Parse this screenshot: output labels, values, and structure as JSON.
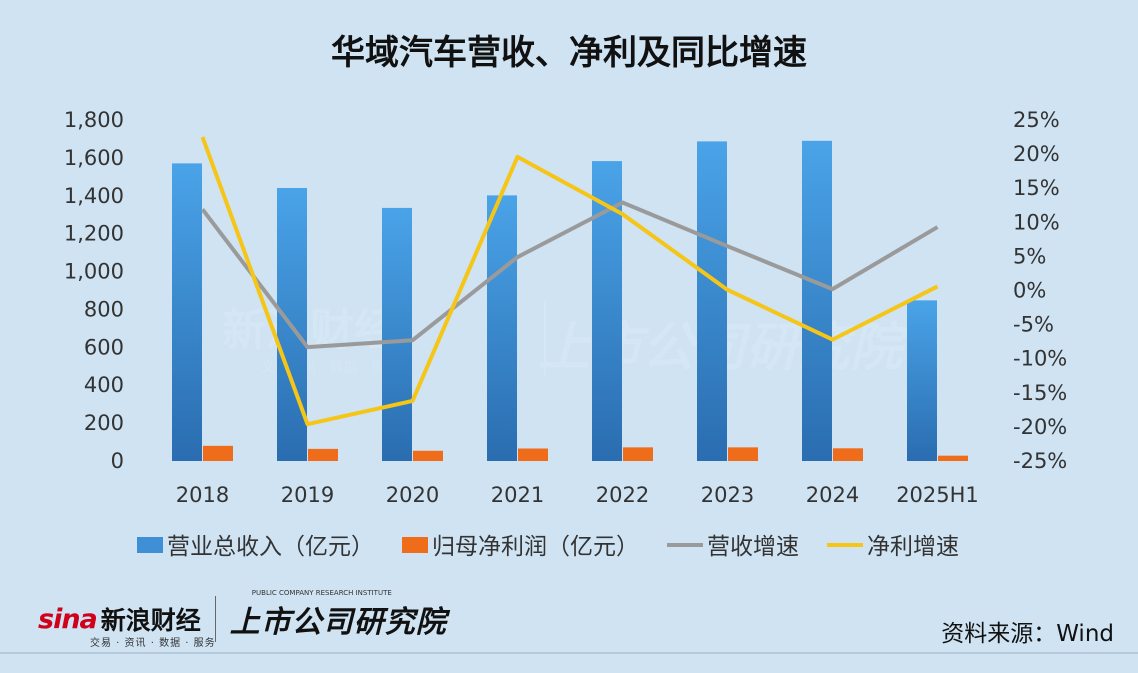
{
  "chart_data": {
    "type": "bar+line",
    "title": "华域汽车营收、净利及同比增速",
    "categories": [
      "2018",
      "2019",
      "2020",
      "2021",
      "2022",
      "2023",
      "2024",
      "2025H1"
    ],
    "left_axis": {
      "ylim": [
        0,
        1800
      ],
      "ticks": [
        "0",
        "200",
        "400",
        "600",
        "800",
        "1,000",
        "1,200",
        "1,400",
        "1,600",
        "1,800"
      ]
    },
    "right_axis": {
      "ylim": [
        -25,
        25
      ],
      "ticks": [
        "-25%",
        "-20%",
        "-15%",
        "-10%",
        "-5%",
        "0%",
        "5%",
        "10%",
        "15%",
        "20%",
        "25%"
      ]
    },
    "series": [
      {
        "name": "营业总收入（亿元）",
        "type": "bar",
        "axis": "left",
        "color": "#3f8fd6",
        "values": [
          1571,
          1441,
          1336,
          1402,
          1583,
          1687,
          1690,
          848
        ]
      },
      {
        "name": "归母净利润（亿元）",
        "type": "bar",
        "axis": "left",
        "color": "#ef6c1a",
        "values": [
          80,
          64,
          54,
          66,
          72,
          72,
          67,
          28
        ]
      },
      {
        "name": "营收增速",
        "type": "line",
        "axis": "right",
        "color": "#9a9a9a",
        "values": [
          11.9,
          -8.3,
          -7.3,
          4.9,
          12.9,
          6.5,
          0.2,
          9.3
        ]
      },
      {
        "name": "净利增速",
        "type": "line",
        "axis": "right",
        "color": "#f5c518",
        "values": [
          22.5,
          -19.6,
          -16.2,
          19.6,
          11.2,
          0.1,
          -7.2,
          0.6
        ]
      }
    ]
  },
  "watermark": {
    "sina": "新浪财经",
    "sina_sub": "文 · 资讯 · 数据 · 服务",
    "institute": "上市公司研究院"
  },
  "footer": {
    "sina_logo": "sina",
    "sina_name": "新浪财经",
    "sina_sub": "交易 · 资讯 · 数据 · 服务",
    "institute": "上市公司研究院",
    "institute_en": "PUBLIC COMPANY RESEARCH INSTITUTE",
    "source": "资料来源：Wind"
  }
}
